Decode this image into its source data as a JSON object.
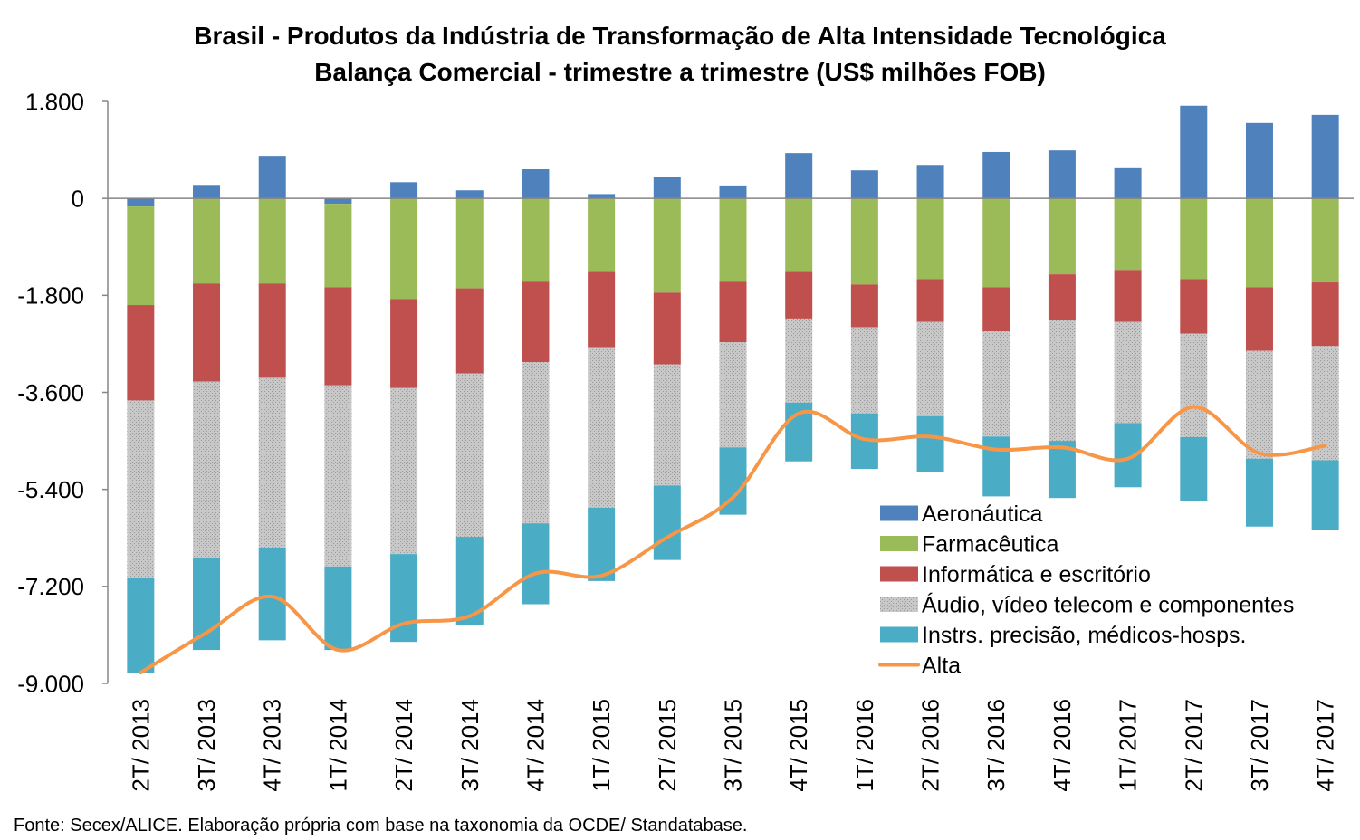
{
  "chart_data": {
    "type": "bar",
    "stacked": true,
    "title": "Brasil - Produtos da Indústria de Transformação de Alta Intensidade Tecnológica",
    "subtitle": "Balança Comercial - trimestre a trimestre (US$ milhões FOB)",
    "categories": [
      "2T/ 2013",
      "3T/ 2013",
      "4T/ 2013",
      "1T/ 2014",
      "2T/ 2014",
      "3T/ 2014",
      "4T/ 2014",
      "1T/ 2015",
      "2T/ 2015",
      "3T/ 2015",
      "4T/ 2015",
      "1T/ 2016",
      "2T/ 2016",
      "3T/ 2016",
      "4T/ 2016",
      "1T/ 2017",
      "2T/ 2017",
      "3T/ 2017",
      "4T/ 2017"
    ],
    "ylim": [
      -9000,
      1800
    ],
    "yticks": [
      1800,
      0,
      -1800,
      -3600,
      -5400,
      -7200,
      -9000
    ],
    "ytick_labels": [
      "1.800",
      "0",
      "-1.800",
      "-3.600",
      "-5.400",
      "-7.200",
      "-9.000"
    ],
    "grid": false,
    "legend_position": "lower-right inside plot",
    "series": [
      {
        "name": "Aeronáutica",
        "type": "bar",
        "color": "#4F81BD",
        "values": [
          -150,
          250,
          790,
          -100,
          300,
          150,
          540,
          80,
          400,
          240,
          840,
          520,
          620,
          860,
          890,
          560,
          1720,
          1400,
          1550
        ]
      },
      {
        "name": "Farmacêutica",
        "type": "bar",
        "color": "#9BBB59",
        "values": [
          -1830,
          -1580,
          -1580,
          -1550,
          -1870,
          -1670,
          -1530,
          -1350,
          -1750,
          -1530,
          -1350,
          -1600,
          -1500,
          -1650,
          -1410,
          -1330,
          -1500,
          -1650,
          -1560
        ]
      },
      {
        "name": "Informática e escritório",
        "type": "bar",
        "color": "#C0504D",
        "values": [
          -1770,
          -1820,
          -1750,
          -1820,
          -1650,
          -1580,
          -1510,
          -1410,
          -1330,
          -1140,
          -880,
          -790,
          -790,
          -820,
          -840,
          -960,
          -1010,
          -1180,
          -1180
        ]
      },
      {
        "name": "Áudio, vídeo telecom e componentes",
        "type": "bar",
        "color": "#C8C8C8",
        "pattern": "dots",
        "values": [
          -3300,
          -3280,
          -3150,
          -3360,
          -3080,
          -3030,
          -2990,
          -2980,
          -2250,
          -1950,
          -1560,
          -1600,
          -1750,
          -1950,
          -2250,
          -1880,
          -1920,
          -2000,
          -2120
        ]
      },
      {
        "name": "Instrs. precisão, médicos-hosps.",
        "type": "bar",
        "color": "#4BACC6",
        "values": [
          -1750,
          -1700,
          -1720,
          -1550,
          -1630,
          -1630,
          -1500,
          -1360,
          -1380,
          -1250,
          -1090,
          -1030,
          -1040,
          -1110,
          -1060,
          -1190,
          -1180,
          -1260,
          -1300
        ]
      },
      {
        "name": "Alta",
        "type": "line",
        "smooth": true,
        "color": "#F79646",
        "values": [
          -8800,
          -8060,
          -7390,
          -8380,
          -7890,
          -7750,
          -6960,
          -7000,
          -6290,
          -5550,
          -3990,
          -4470,
          -4420,
          -4660,
          -4620,
          -4830,
          -3870,
          -4730,
          -4590
        ]
      }
    ]
  },
  "source_note": "Fonte: Secex/ALICE. Elaboração própria com base na taxonomia da OCDE/ Standatabase."
}
